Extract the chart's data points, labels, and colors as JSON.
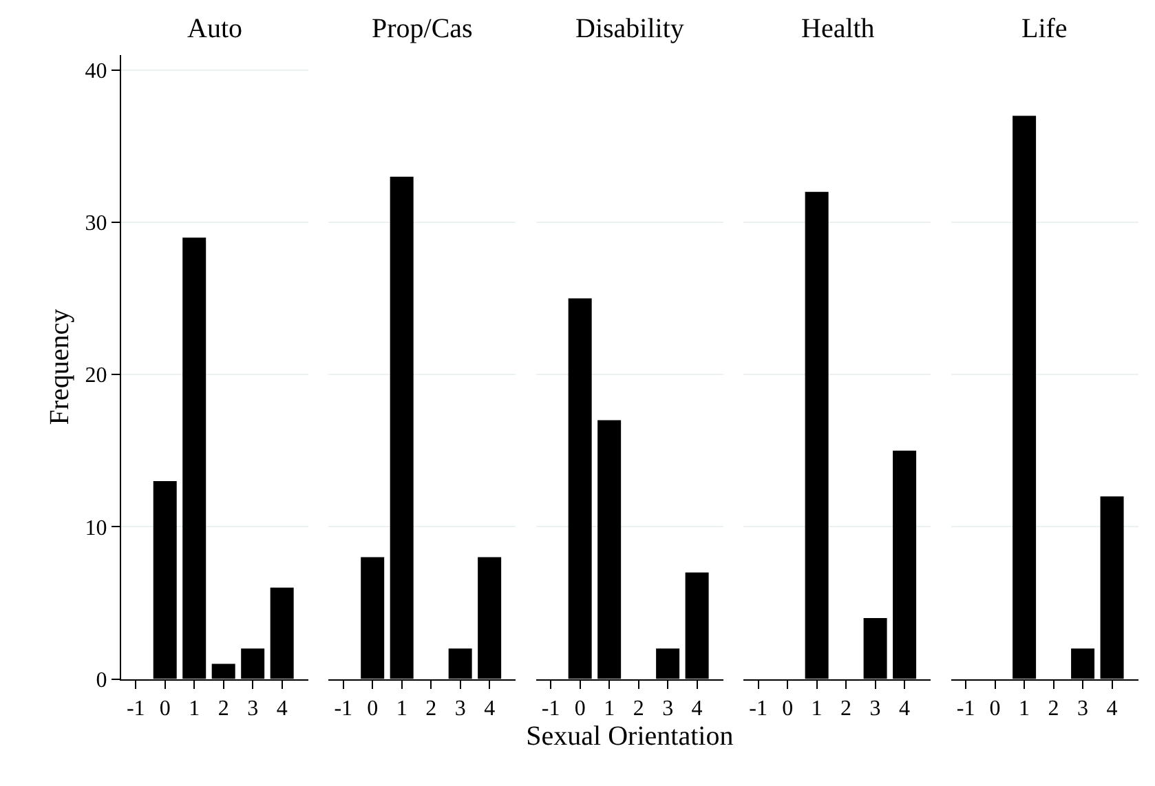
{
  "chart_data": [
    {
      "type": "bar",
      "title": "Auto",
      "ylabel": "Frequency",
      "x": [
        -1,
        0,
        1,
        2,
        3,
        4
      ],
      "values": [
        0,
        13,
        29,
        1,
        2,
        6
      ],
      "color": "#000000",
      "xlim": [
        -1.5,
        4.9
      ],
      "xticks": [
        -1,
        0,
        1,
        2,
        3,
        4
      ],
      "ylim": [
        0,
        41
      ],
      "yticks": [
        0,
        10,
        20,
        30,
        40
      ],
      "grid": "y"
    },
    {
      "type": "bar",
      "title": "Prop/Cas",
      "x": [
        -1,
        0,
        1,
        2,
        3,
        4
      ],
      "values": [
        0,
        8,
        33,
        0,
        2,
        8
      ],
      "color": "#000000",
      "xlim": [
        -1.5,
        4.9
      ],
      "xticks": [
        -1,
        0,
        1,
        2,
        3,
        4
      ],
      "ylim": [
        0,
        40
      ],
      "yticks": [
        0,
        10,
        20,
        30,
        40
      ],
      "grid": "y",
      "tick_labels": "x"
    },
    {
      "type": "bar",
      "title": "Disability",
      "xlabel": "Sexual Orientation",
      "x": [
        -1,
        0,
        1,
        2,
        3,
        4
      ],
      "values": [
        0,
        25,
        17,
        0,
        2,
        7
      ],
      "color": "#000000",
      "xlim": [
        -1.5,
        4.9
      ],
      "xticks": [
        -1,
        0,
        1,
        2,
        3,
        4
      ],
      "ylim": [
        0,
        40
      ],
      "yticks": [
        0,
        10,
        20,
        30,
        40
      ],
      "grid": "y",
      "tick_labels": "x"
    },
    {
      "type": "bar",
      "title": "Health",
      "x": [
        -1,
        0,
        1,
        2,
        3,
        4
      ],
      "values": [
        0,
        0,
        32,
        0,
        4,
        15
      ],
      "color": "#000000",
      "xlim": [
        -1.5,
        4.9
      ],
      "xticks": [
        -1,
        0,
        1,
        2,
        3,
        4
      ],
      "ylim": [
        0,
        40
      ],
      "yticks": [
        0,
        10,
        20,
        30,
        40
      ],
      "grid": "y",
      "tick_labels": "x"
    },
    {
      "type": "bar",
      "title": "Life",
      "x": [
        -1,
        0,
        1,
        2,
        3,
        4
      ],
      "values": [
        0,
        0,
        37,
        0,
        2,
        12
      ],
      "color": "#000000",
      "xlim": [
        -1.5,
        4.9
      ],
      "xticks": [
        -1,
        0,
        1,
        2,
        3,
        4
      ],
      "ylim": [
        0,
        40
      ],
      "yticks": [
        0,
        10,
        20,
        30,
        40
      ],
      "grid": "y",
      "tick_labels": "x"
    }
  ]
}
